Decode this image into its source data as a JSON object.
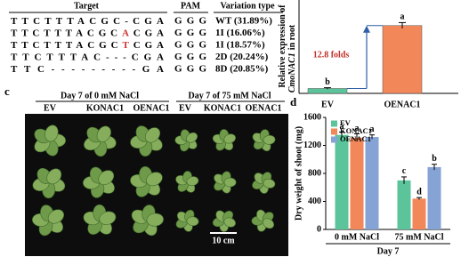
{
  "table": {
    "headers": [
      "Target",
      "PAM",
      "Variation type"
    ],
    "rows": [
      {
        "target": [
          "TTCTTTACGC-CGA"
        ],
        "pam": "GGG",
        "variation": "WT (31.89%)"
      },
      {
        "target": [
          "TTCTTTACGC",
          "A",
          "CGA"
        ],
        "pam": "GGG",
        "variation": "1I (16.06%)"
      },
      {
        "target": [
          "TTCTTTACGC",
          "T",
          "CGA"
        ],
        "pam": "GGG",
        "variation": "1I (18.57%)"
      },
      {
        "target": [
          "TTCTTTAC---CGA"
        ],
        "pam": "GGG",
        "variation": "2D (20.24%)"
      },
      {
        "target": [
          "TTC---------GA"
        ],
        "pam": "GGG",
        "variation": "8D (20.85%)"
      }
    ]
  },
  "panel_c": {
    "label": "c",
    "groups": [
      {
        "title": "Day 7 of 0 mM NaCl",
        "lines": [
          "EV",
          "KONAC1",
          "OENAC1"
        ]
      },
      {
        "title": "Day 7 of 75 mM NaCl",
        "lines": [
          "EV",
          "KONAC1",
          "OENAC1"
        ]
      }
    ],
    "scale": "10 cm"
  },
  "chart_data": [
    {
      "type": "bar",
      "ylabel": [
        "Relative expression of",
        "CmoNAC1",
        "in root"
      ],
      "categories": [
        "EV",
        "OENAC1"
      ],
      "values": [
        1.0,
        13.8
      ],
      "errors": [
        0.15,
        0.6
      ],
      "significance": [
        "b",
        "a"
      ],
      "colors": [
        "#5cc49a",
        "#f2875a"
      ],
      "annotation": "12.8 folds",
      "ylim": [
        0,
        19
      ]
    },
    {
      "type": "grouped_bar",
      "panel_label": "d",
      "ylabel": "Dry weight of shoot (mg)",
      "xlabel": "Day 7",
      "categories": [
        "0 mM NaCl",
        "75 mM NaCl"
      ],
      "series": [
        {
          "name": "EV",
          "color": "#5cc49a",
          "values": [
            1350,
            700
          ],
          "errors": [
            40,
            50
          ],
          "significance": [
            "a",
            "c"
          ]
        },
        {
          "name": "KONAC1",
          "color": "#f2875a",
          "values": [
            1310,
            440
          ],
          "errors": [
            55,
            15
          ],
          "significance": [
            "a",
            "d"
          ]
        },
        {
          "name": "OENAC1",
          "color": "#86a3d6",
          "values": [
            1320,
            890
          ],
          "errors": [
            30,
            40
          ],
          "significance": [
            "a",
            "b"
          ]
        }
      ],
      "ylim": [
        0,
        1600
      ],
      "yticks": [
        0,
        400,
        800,
        1200,
        1600
      ],
      "legend": "upper left"
    }
  ]
}
